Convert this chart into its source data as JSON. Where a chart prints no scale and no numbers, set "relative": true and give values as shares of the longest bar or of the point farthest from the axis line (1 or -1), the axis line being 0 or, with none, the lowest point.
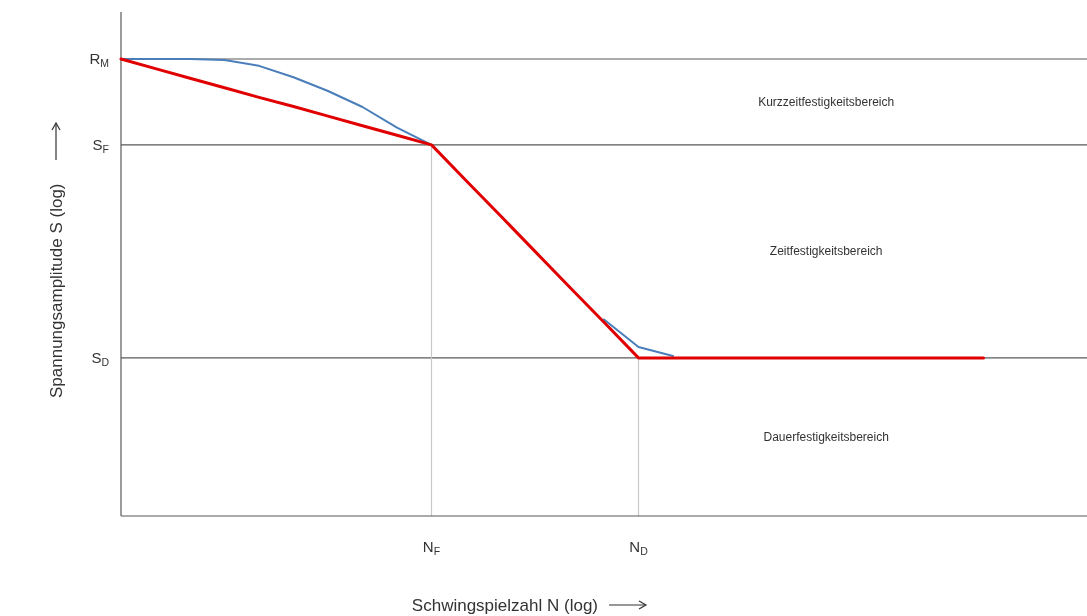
{
  "chart_data": {
    "type": "line",
    "relative": true,
    "xlabel": "Schwingspielzahl N (log)",
    "ylabel": "Spannungsamplitude S (log)",
    "categories": [
      null,
      null,
      null,
      null,
      null,
      null,
      null,
      null,
      null,
      "N$_{F}$",
      null,
      null,
      null,
      null,
      null,
      "N$_{D}$",
      null,
      null,
      null,
      null,
      null,
      null,
      null,
      null,
      null,
      null,
      null,
      null,
      null
    ],
    "series": [
      {
        "color": "#4a7ebb",
        "values": [
          1,
          1,
          1,
          0.998,
          0.985,
          0.96,
          0.93,
          0.895,
          0.85,
          0.812,
          null,
          null,
          null,
          null,
          0.43,
          0.37,
          0.35,
          null,
          null,
          null,
          null,
          null,
          null,
          null,
          null,
          null,
          null,
          null,
          null
        ]
      },
      {
        "color": "#e00000",
        "values": [
          1,
          0.979,
          0.958,
          0.937,
          0.916,
          0.896,
          0.875,
          0.854,
          0.833,
          0.812,
          0.734,
          0.657,
          0.579,
          0.501,
          0.424,
          0.346,
          0.346,
          0.346,
          0.346,
          0.346,
          0.346,
          0.346,
          0.346,
          0.346,
          0.346,
          0.346,
          null,
          null,
          null
        ]
      }
    ],
    "ref_lines": [
      {
        "axis": "y",
        "value": 1,
        "label": "R$_{M}$",
        "color": "#595959"
      },
      {
        "axis": "y",
        "value": 0.812,
        "label": "S$_{F}$",
        "color": "#595959"
      },
      {
        "axis": "y",
        "value": 0.346,
        "label": "S$_{D}$",
        "color": "#595959"
      },
      {
        "axis": "x",
        "value": "N$_{F}$",
        "color": "#c8c8c8"
      },
      {
        "axis": "x",
        "value": "N$_{D}$",
        "color": "#c8c8c8"
      }
    ],
    "annotations": [
      "Kurzzeitfestigkeitsbereich",
      "Zeitfestigkeitsbereich",
      "Dauerfestigkeitsbereich"
    ]
  }
}
